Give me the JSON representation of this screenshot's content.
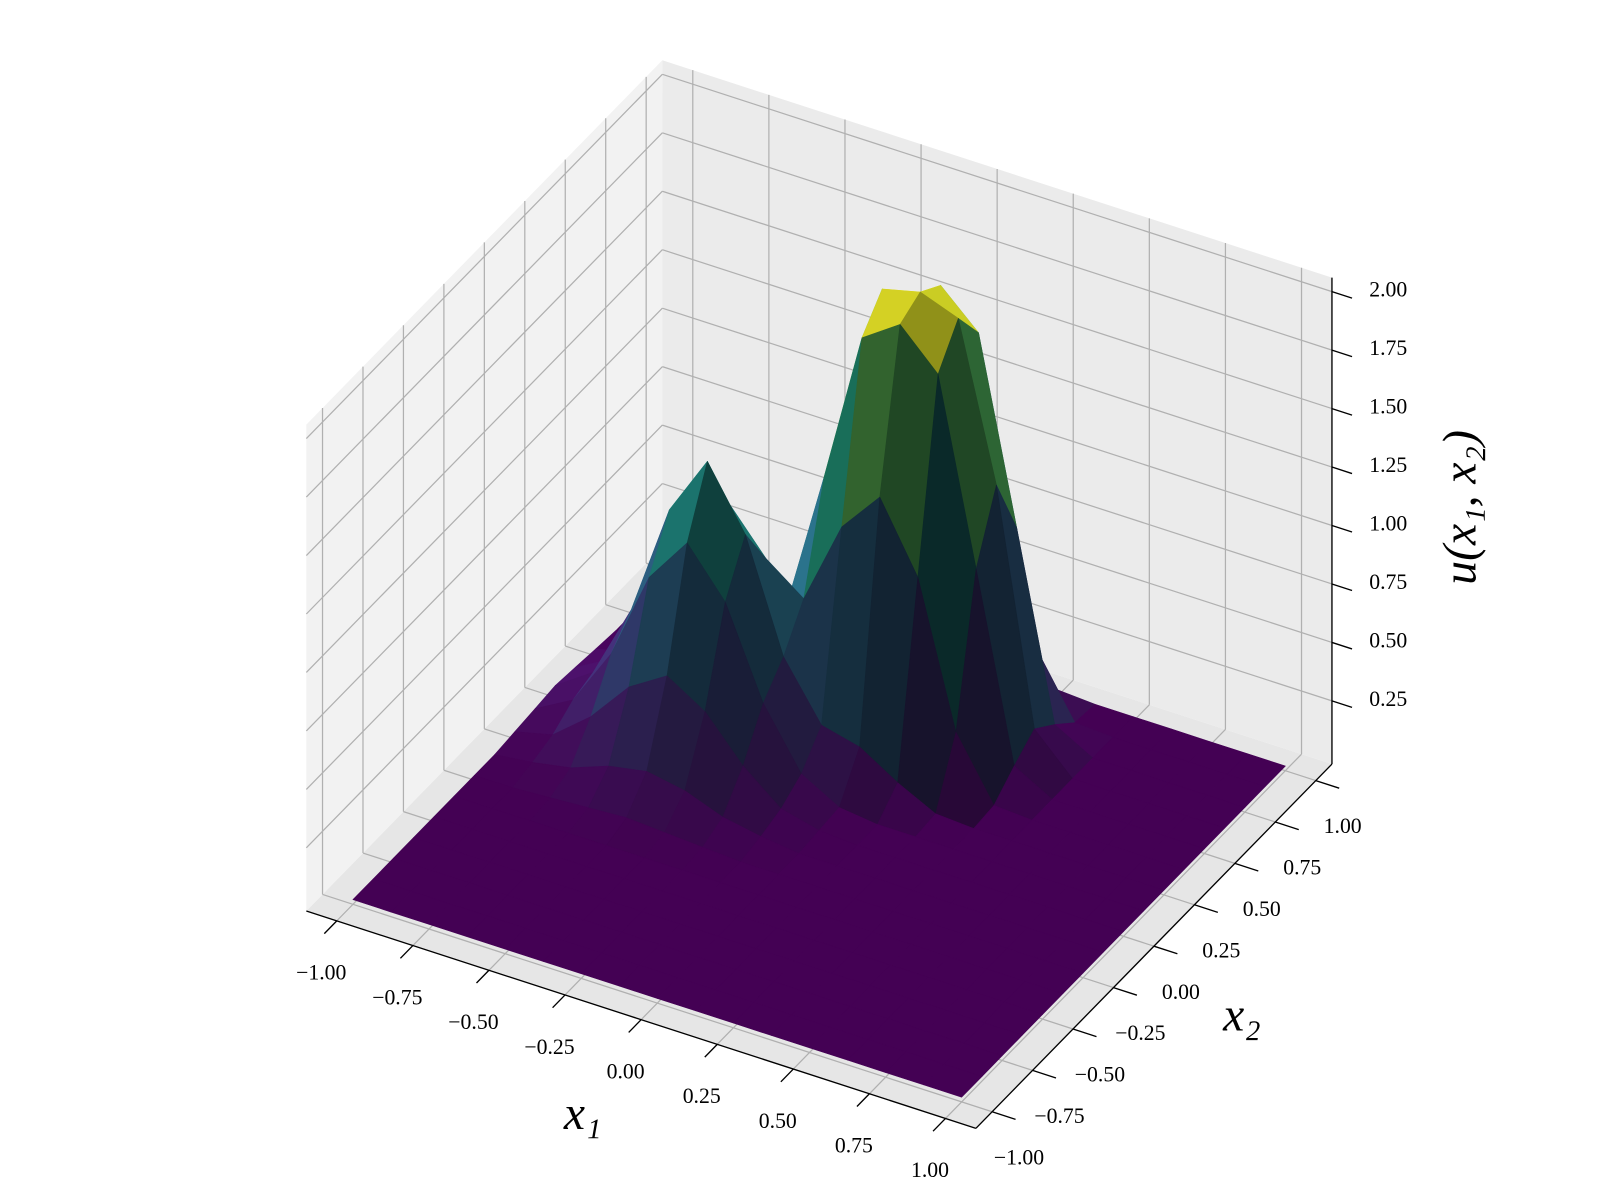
{
  "chart_data": {
    "type": "surface",
    "x_label": "x₁",
    "y_label": "x₂",
    "z_label": "u(x₁, x₂)",
    "colormap": "viridis",
    "grid": true,
    "x": [
      -1,
      -0.875,
      -0.75,
      -0.625,
      -0.5,
      -0.375,
      -0.25,
      -0.125,
      0,
      0.125,
      0.25,
      0.375,
      0.5,
      0.625,
      0.75,
      0.875,
      1
    ],
    "y": [
      -1,
      -0.875,
      -0.75,
      -0.625,
      -0.5,
      -0.375,
      -0.25,
      -0.125,
      0,
      0.125,
      0.25,
      0.375,
      0.5,
      0.625,
      0.75,
      0.875,
      1
    ],
    "z": [
      [
        0,
        0,
        0,
        0,
        0,
        0,
        0,
        0,
        0,
        0,
        0,
        0,
        0,
        0,
        0,
        0,
        0
      ],
      [
        0,
        0,
        0,
        0,
        0,
        0,
        0,
        0,
        0,
        0,
        0,
        0,
        0,
        0,
        0,
        0,
        0
      ],
      [
        0,
        0,
        0,
        0,
        0,
        0,
        0,
        0,
        0,
        0,
        0,
        0,
        0,
        0,
        0,
        0,
        0
      ],
      [
        0,
        0,
        0,
        0,
        0,
        0,
        0,
        0,
        0,
        0,
        0,
        0,
        0,
        0,
        0,
        0,
        0
      ],
      [
        0,
        0,
        0,
        0,
        0,
        0,
        0,
        0,
        0,
        0,
        0,
        0,
        0,
        0,
        0,
        0,
        0
      ],
      [
        0,
        0,
        0,
        0,
        0,
        0,
        0,
        0,
        0,
        0,
        0,
        0,
        0,
        0,
        0,
        0,
        0
      ],
      [
        0,
        0,
        0.01,
        0.02,
        0.03,
        0.02,
        0.01,
        0,
        0,
        0,
        0,
        0,
        0,
        0,
        0,
        0,
        0
      ],
      [
        0,
        0.02,
        0.05,
        0.11,
        0.14,
        0.11,
        0.05,
        0.02,
        0,
        0,
        0,
        0,
        0,
        0,
        0,
        0,
        0
      ],
      [
        0.01,
        0.05,
        0.18,
        0.36,
        0.46,
        0.36,
        0.18,
        0.05,
        0.01,
        0,
        0,
        0,
        0,
        0,
        0,
        0,
        0
      ],
      [
        0.02,
        0.11,
        0.36,
        0.74,
        0.94,
        0.74,
        0.36,
        0.11,
        0.02,
        0,
        0,
        0,
        0,
        0,
        0,
        0,
        0
      ],
      [
        0.03,
        0.14,
        0.46,
        0.94,
        1.2,
        0.94,
        0.47,
        0.23,
        0.19,
        0.09,
        0.01,
        0,
        0,
        0,
        0,
        0,
        0
      ],
      [
        0.02,
        0.11,
        0.36,
        0.74,
        0.94,
        0.75,
        0.63,
        0.99,
        1.17,
        0.88,
        0.27,
        0.01,
        0,
        0,
        0,
        0,
        0
      ],
      [
        0.01,
        0.05,
        0.18,
        0.36,
        0.46,
        0.45,
        1.06,
        1.71,
        1.82,
        1.66,
        0.88,
        0.09,
        0,
        0,
        0,
        0,
        0
      ],
      [
        0,
        0.02,
        0.05,
        0.11,
        0.14,
        0.27,
        1.2,
        1.83,
        1.87,
        1.81,
        1.15,
        0.16,
        0,
        0,
        0,
        0,
        0
      ],
      [
        0,
        0,
        0.01,
        0.02,
        0.03,
        0.11,
        0.89,
        1.66,
        1.81,
        1.66,
        0.88,
        0.09,
        0,
        0,
        0,
        0,
        0
      ],
      [
        0,
        0,
        0,
        0,
        0,
        0.01,
        0.27,
        0.88,
        1.15,
        0.88,
        0.27,
        0.01,
        0,
        0,
        0,
        0,
        0
      ],
      [
        0,
        0,
        0,
        0,
        0,
        0,
        0.01,
        0.09,
        0.16,
        0.09,
        0.01,
        0,
        0,
        0,
        0,
        0,
        0
      ]
    ],
    "xlim": [
      -1.1,
      1.1
    ],
    "ylim": [
      -1.1,
      1.1
    ],
    "zlim": [
      -0.02,
      2.06
    ],
    "xticks": [
      {
        "value": -1,
        "label": "−1.00"
      },
      {
        "value": -0.75,
        "label": "−0.75"
      },
      {
        "value": -0.5,
        "label": "−0.50"
      },
      {
        "value": -0.25,
        "label": "−0.25"
      },
      {
        "value": 0,
        "label": "0.00"
      },
      0.25,
      {
        "value": 0.5,
        "label": "0.50"
      },
      0.75,
      {
        "value": 1,
        "label": "1.00"
      }
    ],
    "yticks": [
      {
        "value": -1,
        "label": "−1.00"
      },
      {
        "value": -0.75,
        "label": "−0.75"
      },
      {
        "value": -0.5,
        "label": "−0.50"
      },
      {
        "value": -0.25,
        "label": "−0.25"
      },
      {
        "value": 0,
        "label": "0.00"
      },
      0.25,
      {
        "value": 0.5,
        "label": "0.50"
      },
      0.75,
      {
        "value": 1,
        "label": "1.00"
      }
    ],
    "zticks": [
      0.25,
      {
        "value": 0.5,
        "label": "0.50"
      },
      0.75,
      {
        "value": 1,
        "label": "1.00"
      },
      1.25,
      {
        "value": 1.5,
        "label": "1.50"
      },
      1.75,
      {
        "value": 2,
        "label": "2.00"
      }
    ]
  }
}
